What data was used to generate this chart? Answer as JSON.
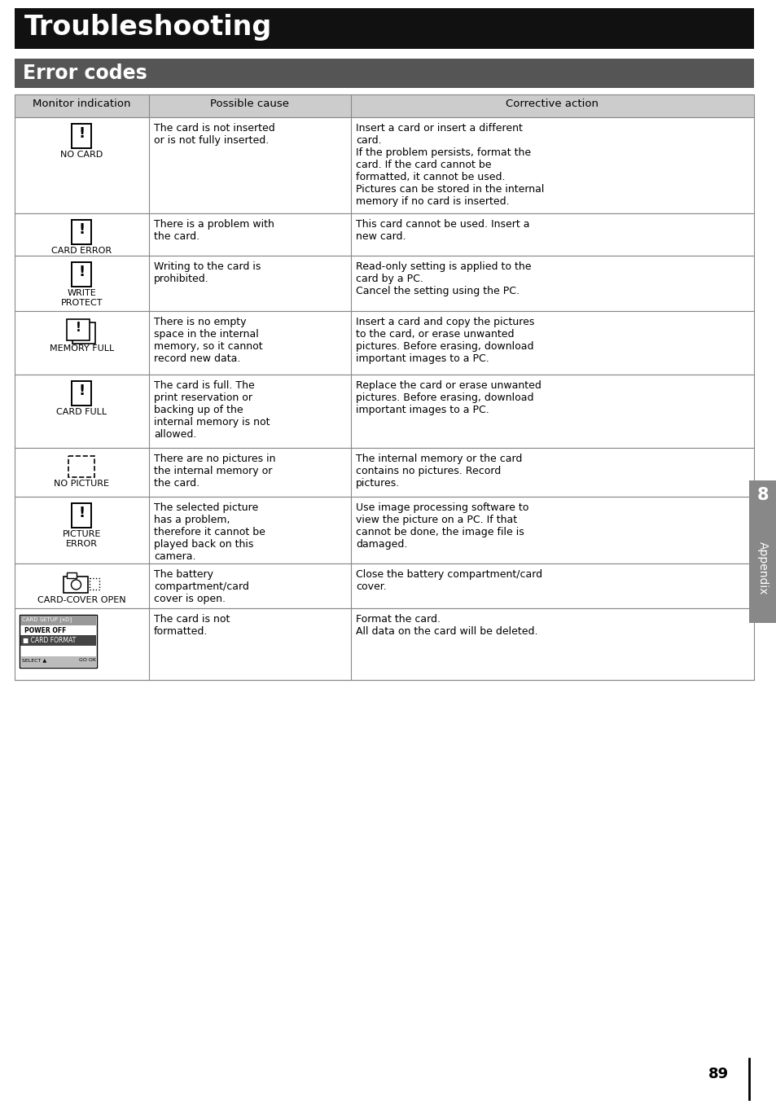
{
  "page_title": "Troubleshooting",
  "section_title": "Error codes",
  "title_bg": "#111111",
  "section_bg": "#555555",
  "header_bg": "#cccccc",
  "table_border": "#888888",
  "page_number": "89",
  "appendix_label": "Appendix",
  "chapter_number": "8",
  "col_headers": [
    "Monitor indication",
    "Possible cause",
    "Corrective action"
  ],
  "rows": [
    {
      "icon_label": "NO CARD",
      "icon_type": "card_icon",
      "possible_cause": "The card is not inserted\nor is not fully inserted.",
      "corrective_action": "Insert a card or insert a different\ncard.\nIf the problem persists, format the\ncard. If the card cannot be\nformatted, it cannot be used.\nPictures can be stored in the internal\nmemory if no card is inserted."
    },
    {
      "icon_label": "CARD ERROR",
      "icon_type": "card_icon",
      "possible_cause": "There is a problem with\nthe card.",
      "corrective_action": "This card cannot be used. Insert a\nnew card."
    },
    {
      "icon_label": "WRITE\nPROTECT",
      "icon_type": "card_icon",
      "possible_cause": "Writing to the card is\nprohibited.",
      "corrective_action": "Read-only setting is applied to the\ncard by a PC.\nCancel the setting using the PC."
    },
    {
      "icon_label": "MEMORY FULL",
      "icon_type": "memory_icon",
      "possible_cause": "There is no empty\nspace in the internal\nmemory, so it cannot\nrecord new data.",
      "corrective_action": "Insert a card and copy the pictures\nto the card, or erase unwanted\npictures. Before erasing, download\nimportant images to a PC."
    },
    {
      "icon_label": "CARD FULL",
      "icon_type": "card_icon",
      "possible_cause": "The card is full. The\nprint reservation or\nbacking up of the\ninternal memory is not\nallowed.",
      "corrective_action": "Replace the card or erase unwanted\npictures. Before erasing, download\nimportant images to a PC."
    },
    {
      "icon_label": "NO PICTURE",
      "icon_type": "picture_icon",
      "possible_cause": "There are no pictures in\nthe internal memory or\nthe card.",
      "corrective_action": "The internal memory or the card\ncontains no pictures. Record\npictures."
    },
    {
      "icon_label": "PICTURE\nERROR",
      "icon_type": "card_icon",
      "possible_cause": "The selected picture\nhas a problem,\ntherefore it cannot be\nplayed back on this\ncamera.",
      "corrective_action": "Use image processing software to\nview the picture on a PC. If that\ncannot be done, the image file is\ndamaged."
    },
    {
      "icon_label": "CARD-COVER OPEN",
      "icon_type": "cover_icon",
      "possible_cause": "The battery\ncompartment/card\ncover is open.",
      "corrective_action": "Close the battery compartment/card\ncover."
    },
    {
      "icon_label": "",
      "icon_type": "screen_icon",
      "possible_cause": "The card is not\nformatted.",
      "corrective_action": "Format the card.\nAll data on the card will be deleted."
    }
  ]
}
